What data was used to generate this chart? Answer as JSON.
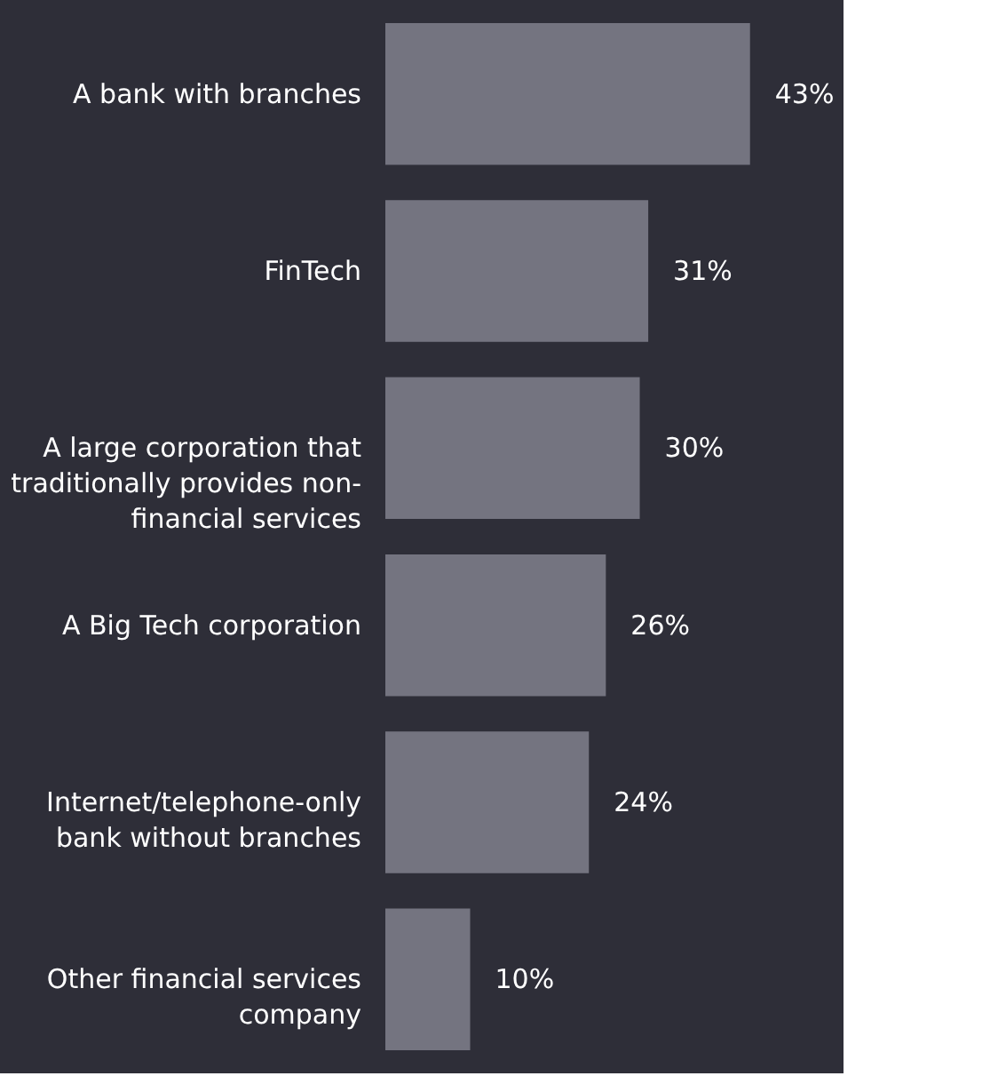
{
  "chart_data": {
    "type": "bar",
    "orientation": "horizontal",
    "categories": [
      "A bank with branches",
      "FinTech",
      "A large corporation that traditionally provides non-financial services",
      "A Big Tech corporation",
      "Internet/telephone-only bank without branches",
      "Other financial services company"
    ],
    "values": [
      43,
      31,
      30,
      26,
      24,
      10
    ],
    "value_labels": [
      "43%",
      "31%",
      "30%",
      "26%",
      "24%",
      "10%"
    ],
    "color": "#747480",
    "grid": false
  }
}
